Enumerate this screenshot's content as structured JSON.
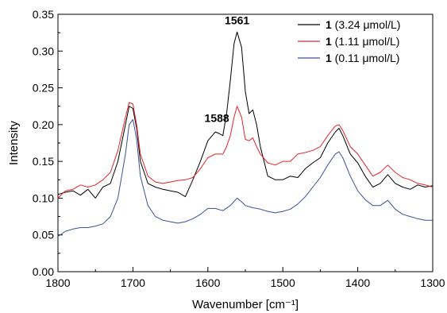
{
  "chart_data": {
    "type": "line",
    "xlabel": "Wavenumber [cm⁻¹]",
    "ylabel": "Intensity",
    "xlim": [
      1800,
      1300
    ],
    "ylim": [
      0.0,
      0.35
    ],
    "x_ticks": [
      1800,
      1700,
      1600,
      1500,
      1400,
      1300
    ],
    "x_tick_labels": [
      "1800",
      "1700",
      "1600",
      "1500",
      "1400",
      "1300"
    ],
    "y_ticks": [
      0.0,
      0.05,
      0.1,
      0.15,
      0.2,
      0.25,
      0.3,
      0.35
    ],
    "y_tick_labels": [
      "0.00",
      "0.05",
      "0.10",
      "0.15",
      "0.20",
      "0.25",
      "0.30",
      "0.35"
    ],
    "legend_position": "top-right",
    "annotations": [
      {
        "text": "1561",
        "x": 1561,
        "y": 0.33
      },
      {
        "text": "1588",
        "x": 1588,
        "y": 0.197
      }
    ],
    "series": [
      {
        "name": "1",
        "name_suffix": " (3.24 μmol/L)",
        "color": "#000000",
        "points": [
          [
            1800,
            0.105
          ],
          [
            1790,
            0.108
          ],
          [
            1780,
            0.11
          ],
          [
            1770,
            0.104
          ],
          [
            1760,
            0.112
          ],
          [
            1750,
            0.1
          ],
          [
            1740,
            0.115
          ],
          [
            1730,
            0.12
          ],
          [
            1720,
            0.15
          ],
          [
            1710,
            0.2
          ],
          [
            1705,
            0.225
          ],
          [
            1700,
            0.222
          ],
          [
            1695,
            0.195
          ],
          [
            1690,
            0.15
          ],
          [
            1680,
            0.12
          ],
          [
            1670,
            0.115
          ],
          [
            1660,
            0.112
          ],
          [
            1650,
            0.11
          ],
          [
            1640,
            0.108
          ],
          [
            1630,
            0.102
          ],
          [
            1620,
            0.125
          ],
          [
            1610,
            0.15
          ],
          [
            1600,
            0.178
          ],
          [
            1590,
            0.19
          ],
          [
            1585,
            0.188
          ],
          [
            1580,
            0.185
          ],
          [
            1575,
            0.215
          ],
          [
            1570,
            0.26
          ],
          [
            1565,
            0.31
          ],
          [
            1561,
            0.326
          ],
          [
            1555,
            0.305
          ],
          [
            1550,
            0.245
          ],
          [
            1545,
            0.215
          ],
          [
            1540,
            0.22
          ],
          [
            1535,
            0.2
          ],
          [
            1530,
            0.17
          ],
          [
            1520,
            0.13
          ],
          [
            1510,
            0.125
          ],
          [
            1500,
            0.125
          ],
          [
            1490,
            0.13
          ],
          [
            1480,
            0.128
          ],
          [
            1470,
            0.14
          ],
          [
            1460,
            0.148
          ],
          [
            1450,
            0.155
          ],
          [
            1440,
            0.175
          ],
          [
            1430,
            0.19
          ],
          [
            1425,
            0.195
          ],
          [
            1420,
            0.185
          ],
          [
            1410,
            0.16
          ],
          [
            1400,
            0.148
          ],
          [
            1390,
            0.13
          ],
          [
            1380,
            0.115
          ],
          [
            1370,
            0.12
          ],
          [
            1360,
            0.132
          ],
          [
            1350,
            0.12
          ],
          [
            1340,
            0.115
          ],
          [
            1330,
            0.112
          ],
          [
            1320,
            0.118
          ],
          [
            1310,
            0.115
          ],
          [
            1300,
            0.117
          ]
        ]
      },
      {
        "name": "1",
        "name_suffix": " (1.11 μmol/L)",
        "color": "#e8232a",
        "points": [
          [
            1800,
            0.1
          ],
          [
            1790,
            0.11
          ],
          [
            1780,
            0.112
          ],
          [
            1770,
            0.118
          ],
          [
            1760,
            0.115
          ],
          [
            1750,
            0.118
          ],
          [
            1740,
            0.125
          ],
          [
            1730,
            0.135
          ],
          [
            1720,
            0.165
          ],
          [
            1710,
            0.21
          ],
          [
            1705,
            0.23
          ],
          [
            1700,
            0.228
          ],
          [
            1695,
            0.2
          ],
          [
            1690,
            0.16
          ],
          [
            1680,
            0.13
          ],
          [
            1670,
            0.122
          ],
          [
            1660,
            0.12
          ],
          [
            1650,
            0.122
          ],
          [
            1640,
            0.124
          ],
          [
            1630,
            0.125
          ],
          [
            1620,
            0.128
          ],
          [
            1610,
            0.14
          ],
          [
            1600,
            0.155
          ],
          [
            1590,
            0.16
          ],
          [
            1580,
            0.16
          ],
          [
            1575,
            0.17
          ],
          [
            1570,
            0.185
          ],
          [
            1565,
            0.21
          ],
          [
            1561,
            0.225
          ],
          [
            1555,
            0.21
          ],
          [
            1550,
            0.18
          ],
          [
            1545,
            0.178
          ],
          [
            1540,
            0.182
          ],
          [
            1535,
            0.17
          ],
          [
            1530,
            0.16
          ],
          [
            1520,
            0.148
          ],
          [
            1510,
            0.145
          ],
          [
            1500,
            0.15
          ],
          [
            1490,
            0.15
          ],
          [
            1480,
            0.16
          ],
          [
            1470,
            0.162
          ],
          [
            1460,
            0.165
          ],
          [
            1450,
            0.17
          ],
          [
            1440,
            0.185
          ],
          [
            1430,
            0.198
          ],
          [
            1425,
            0.2
          ],
          [
            1420,
            0.192
          ],
          [
            1410,
            0.17
          ],
          [
            1400,
            0.16
          ],
          [
            1390,
            0.145
          ],
          [
            1380,
            0.13
          ],
          [
            1370,
            0.135
          ],
          [
            1360,
            0.145
          ],
          [
            1350,
            0.135
          ],
          [
            1340,
            0.128
          ],
          [
            1330,
            0.125
          ],
          [
            1320,
            0.12
          ],
          [
            1310,
            0.118
          ],
          [
            1300,
            0.115
          ]
        ]
      },
      {
        "name": "1",
        "name_suffix": " (0.11 μmol/L)",
        "color": "#3a4fa0",
        "points": [
          [
            1800,
            0.048
          ],
          [
            1790,
            0.055
          ],
          [
            1780,
            0.058
          ],
          [
            1770,
            0.06
          ],
          [
            1760,
            0.06
          ],
          [
            1750,
            0.062
          ],
          [
            1740,
            0.065
          ],
          [
            1730,
            0.075
          ],
          [
            1720,
            0.1
          ],
          [
            1710,
            0.16
          ],
          [
            1705,
            0.2
          ],
          [
            1700,
            0.207
          ],
          [
            1695,
            0.18
          ],
          [
            1690,
            0.13
          ],
          [
            1680,
            0.09
          ],
          [
            1670,
            0.075
          ],
          [
            1660,
            0.07
          ],
          [
            1650,
            0.068
          ],
          [
            1640,
            0.066
          ],
          [
            1630,
            0.068
          ],
          [
            1620,
            0.072
          ],
          [
            1610,
            0.078
          ],
          [
            1600,
            0.086
          ],
          [
            1590,
            0.086
          ],
          [
            1580,
            0.083
          ],
          [
            1570,
            0.09
          ],
          [
            1561,
            0.1
          ],
          [
            1555,
            0.095
          ],
          [
            1550,
            0.09
          ],
          [
            1540,
            0.087
          ],
          [
            1530,
            0.085
          ],
          [
            1520,
            0.082
          ],
          [
            1510,
            0.08
          ],
          [
            1500,
            0.082
          ],
          [
            1490,
            0.085
          ],
          [
            1480,
            0.092
          ],
          [
            1470,
            0.102
          ],
          [
            1460,
            0.115
          ],
          [
            1450,
            0.128
          ],
          [
            1440,
            0.145
          ],
          [
            1430,
            0.16
          ],
          [
            1425,
            0.163
          ],
          [
            1420,
            0.155
          ],
          [
            1410,
            0.13
          ],
          [
            1400,
            0.11
          ],
          [
            1390,
            0.098
          ],
          [
            1380,
            0.09
          ],
          [
            1370,
            0.09
          ],
          [
            1360,
            0.097
          ],
          [
            1350,
            0.085
          ],
          [
            1340,
            0.078
          ],
          [
            1330,
            0.075
          ],
          [
            1320,
            0.072
          ],
          [
            1310,
            0.07
          ],
          [
            1300,
            0.07
          ]
        ]
      }
    ]
  }
}
